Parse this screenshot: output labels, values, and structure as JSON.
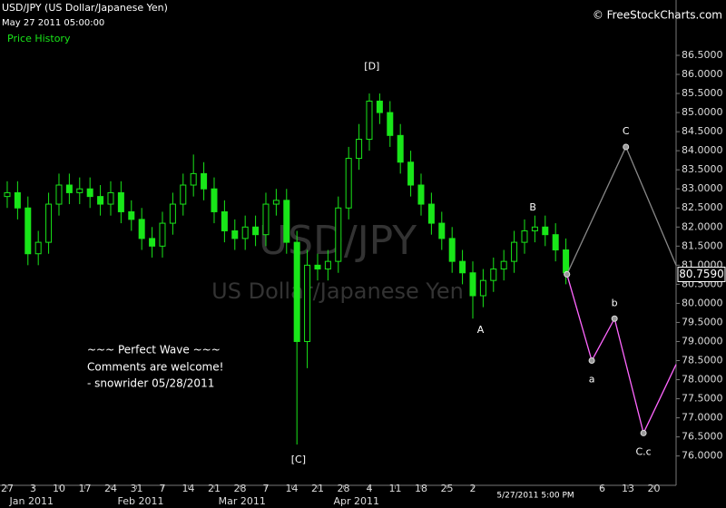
{
  "chart_data": {
    "type": "candlestick",
    "title": "USD/JPY (US Dollar/Japanese Yen)",
    "subtitle": "May 27 2011 05:00:00",
    "legend_label": "Price History",
    "source": "© FreeStockCharts.com",
    "watermark": "USD/JPY",
    "watermark_sub": "US Dollar/Japanese Yen",
    "comments": [
      "~~~ Perfect Wave ~~~",
      "Comments are welcome!",
      "- snowrider  05/28/2011"
    ],
    "date_label": "5/27/2011 5:00 PM",
    "color": "#19e619",
    "xlim": [
      -1.4,
      129.3
    ],
    "ylim": [
      75.35,
      87.95
    ],
    "xticks": [
      {
        "value": 0,
        "label": "27"
      },
      {
        "value": 5,
        "label": "3"
      },
      {
        "value": 10,
        "label": "10"
      },
      {
        "value": 15,
        "label": "17"
      },
      {
        "value": 20,
        "label": "24"
      },
      {
        "value": 25,
        "label": "31"
      },
      {
        "value": 30,
        "label": "7"
      },
      {
        "value": 35,
        "label": "14"
      },
      {
        "value": 40,
        "label": "21"
      },
      {
        "value": 45,
        "label": "28"
      },
      {
        "value": 50,
        "label": "7"
      },
      {
        "value": 55,
        "label": "14"
      },
      {
        "value": 60,
        "label": "21"
      },
      {
        "value": 65,
        "label": "28"
      },
      {
        "value": 70,
        "label": "4"
      },
      {
        "value": 75,
        "label": "11"
      },
      {
        "value": 80,
        "label": "18"
      },
      {
        "value": 85,
        "label": "25"
      },
      {
        "value": 90,
        "label": "2"
      },
      {
        "value": 115,
        "label": "6"
      },
      {
        "value": 120,
        "label": "13"
      },
      {
        "value": 125,
        "label": "20"
      }
    ],
    "month_ticks": [
      {
        "value": 4.7,
        "label": "Jan 2011"
      },
      {
        "value": 25.8,
        "label": "Feb 2011"
      },
      {
        "value": 45.4,
        "label": "Mar 2011"
      },
      {
        "value": 67.5,
        "label": "Apr 2011"
      }
    ],
    "yticks": [
      {
        "value": 76,
        "label": "76.0000"
      },
      {
        "value": 76.5,
        "label": "76.5000"
      },
      {
        "value": 77,
        "label": "77.0000"
      },
      {
        "value": 77.5,
        "label": "77.5000"
      },
      {
        "value": 78,
        "label": "78.0000"
      },
      {
        "value": 78.5,
        "label": "78.5000"
      },
      {
        "value": 79,
        "label": "79.0000"
      },
      {
        "value": 79.5,
        "label": "79.5000"
      },
      {
        "value": 80,
        "label": "80.0000"
      },
      {
        "value": 80.5,
        "label": "80.5000"
      },
      {
        "value": 81,
        "label": "81.0000"
      },
      {
        "value": 81.5,
        "label": "81.5000"
      },
      {
        "value": 82,
        "label": "82.0000"
      },
      {
        "value": 82.5,
        "label": "82.5000"
      },
      {
        "value": 83,
        "label": "83.0000"
      },
      {
        "value": 83.5,
        "label": "83.5000"
      },
      {
        "value": 84,
        "label": "84.0000"
      },
      {
        "value": 84.5,
        "label": "84.5000"
      },
      {
        "value": 85,
        "label": "85.0000"
      },
      {
        "value": 85.5,
        "label": "85.5000"
      },
      {
        "value": 86,
        "label": "86.0000"
      },
      {
        "value": 86.5,
        "label": "86.5000"
      }
    ],
    "last_price": {
      "value": 80.759,
      "label": "80.7590"
    },
    "x": [
      0,
      2,
      4,
      6,
      8,
      10,
      12,
      14,
      16,
      18,
      20,
      22,
      24,
      26,
      28,
      30,
      32,
      34,
      36,
      38,
      40,
      42,
      44,
      46,
      48,
      50,
      52,
      54,
      56,
      58,
      60,
      62,
      64,
      66,
      68,
      70,
      72,
      74,
      76,
      78,
      80,
      82,
      84,
      86,
      88,
      90,
      92,
      94,
      96,
      98,
      100,
      102,
      104,
      106,
      108
    ],
    "open": [
      82.8,
      82.9,
      82.5,
      81.3,
      81.6,
      82.6,
      83.1,
      82.9,
      83.0,
      82.8,
      82.6,
      82.9,
      82.4,
      82.2,
      81.7,
      81.5,
      82.1,
      82.6,
      83.1,
      83.4,
      83.0,
      82.4,
      81.9,
      81.7,
      82.0,
      81.8,
      82.6,
      82.7,
      81.6,
      79.0,
      81.0,
      80.9,
      81.1,
      82.5,
      83.8,
      84.3,
      85.3,
      85.0,
      84.4,
      83.7,
      83.1,
      82.6,
      82.1,
      81.7,
      81.1,
      80.8,
      80.2,
      80.6,
      80.9,
      81.1,
      81.6,
      81.9,
      82.0,
      81.8,
      81.4
    ],
    "high": [
      83.2,
      83.2,
      82.8,
      81.9,
      82.9,
      83.4,
      83.4,
      83.3,
      83.3,
      83.1,
      83.2,
      83.2,
      82.7,
      82.5,
      82.0,
      82.4,
      82.9,
      83.4,
      83.9,
      83.7,
      83.3,
      82.7,
      82.2,
      82.3,
      82.3,
      82.9,
      83.0,
      83.0,
      81.9,
      81.4,
      81.3,
      81.4,
      82.8,
      84.1,
      84.7,
      85.5,
      85.5,
      85.3,
      84.7,
      84.0,
      83.4,
      82.9,
      82.4,
      82.0,
      81.4,
      81.1,
      80.9,
      81.2,
      81.4,
      81.9,
      82.2,
      82.3,
      82.3,
      82.1,
      81.7
    ],
    "low": [
      82.5,
      82.2,
      81.0,
      81.0,
      81.3,
      82.3,
      82.6,
      82.6,
      82.5,
      82.3,
      82.3,
      82.1,
      81.9,
      81.4,
      81.2,
      81.2,
      81.8,
      82.3,
      82.8,
      82.7,
      82.1,
      81.6,
      81.4,
      81.4,
      81.5,
      81.5,
      82.3,
      81.3,
      76.3,
      78.3,
      80.6,
      80.6,
      80.8,
      82.2,
      83.5,
      84.0,
      84.7,
      84.1,
      83.4,
      82.8,
      82.3,
      81.8,
      81.4,
      80.8,
      80.5,
      79.6,
      79.9,
      80.3,
      80.6,
      80.8,
      81.3,
      81.6,
      81.5,
      81.1,
      80.5
    ],
    "close": [
      82.9,
      82.5,
      81.3,
      81.6,
      82.6,
      83.1,
      82.9,
      83.0,
      82.8,
      82.6,
      82.9,
      82.4,
      82.2,
      81.7,
      81.5,
      82.1,
      82.6,
      83.1,
      83.4,
      83.0,
      82.4,
      81.9,
      81.7,
      82.0,
      81.8,
      82.6,
      82.7,
      81.6,
      79.0,
      81.0,
      80.9,
      81.1,
      82.5,
      83.8,
      84.3,
      85.3,
      85.0,
      84.4,
      83.7,
      83.1,
      82.6,
      82.1,
      81.7,
      81.1,
      80.8,
      80.2,
      80.6,
      80.9,
      81.1,
      81.6,
      81.9,
      82.0,
      81.8,
      81.4,
      80.8
    ],
    "overlays": [
      {
        "color": "#ff66ff",
        "x": [
          108.2,
          113,
          117.4,
          123,
          129.3
        ],
        "values": [
          80.76,
          78.5,
          79.6,
          76.6,
          78.4
        ]
      },
      {
        "color": "#888888",
        "x": [
          108.2,
          119.6,
          129.3
        ],
        "values": [
          80.76,
          84.1,
          81.0
        ]
      }
    ],
    "annotations": [
      {
        "text": "[D]",
        "x": 70.5,
        "y": 86.2
      },
      {
        "text": "[C]",
        "x": 56.3,
        "y": 75.9
      },
      {
        "text": "A",
        "x": 91.5,
        "y": 79.3
      },
      {
        "text": "B",
        "x": 101.6,
        "y": 82.5
      },
      {
        "text": "a",
        "x": 113,
        "y": 78.0
      },
      {
        "text": "b",
        "x": 117.4,
        "y": 80.0
      },
      {
        "text": "C.c",
        "x": 123,
        "y": 76.1
      },
      {
        "text": "C",
        "x": 119.6,
        "y": 84.5
      }
    ]
  }
}
